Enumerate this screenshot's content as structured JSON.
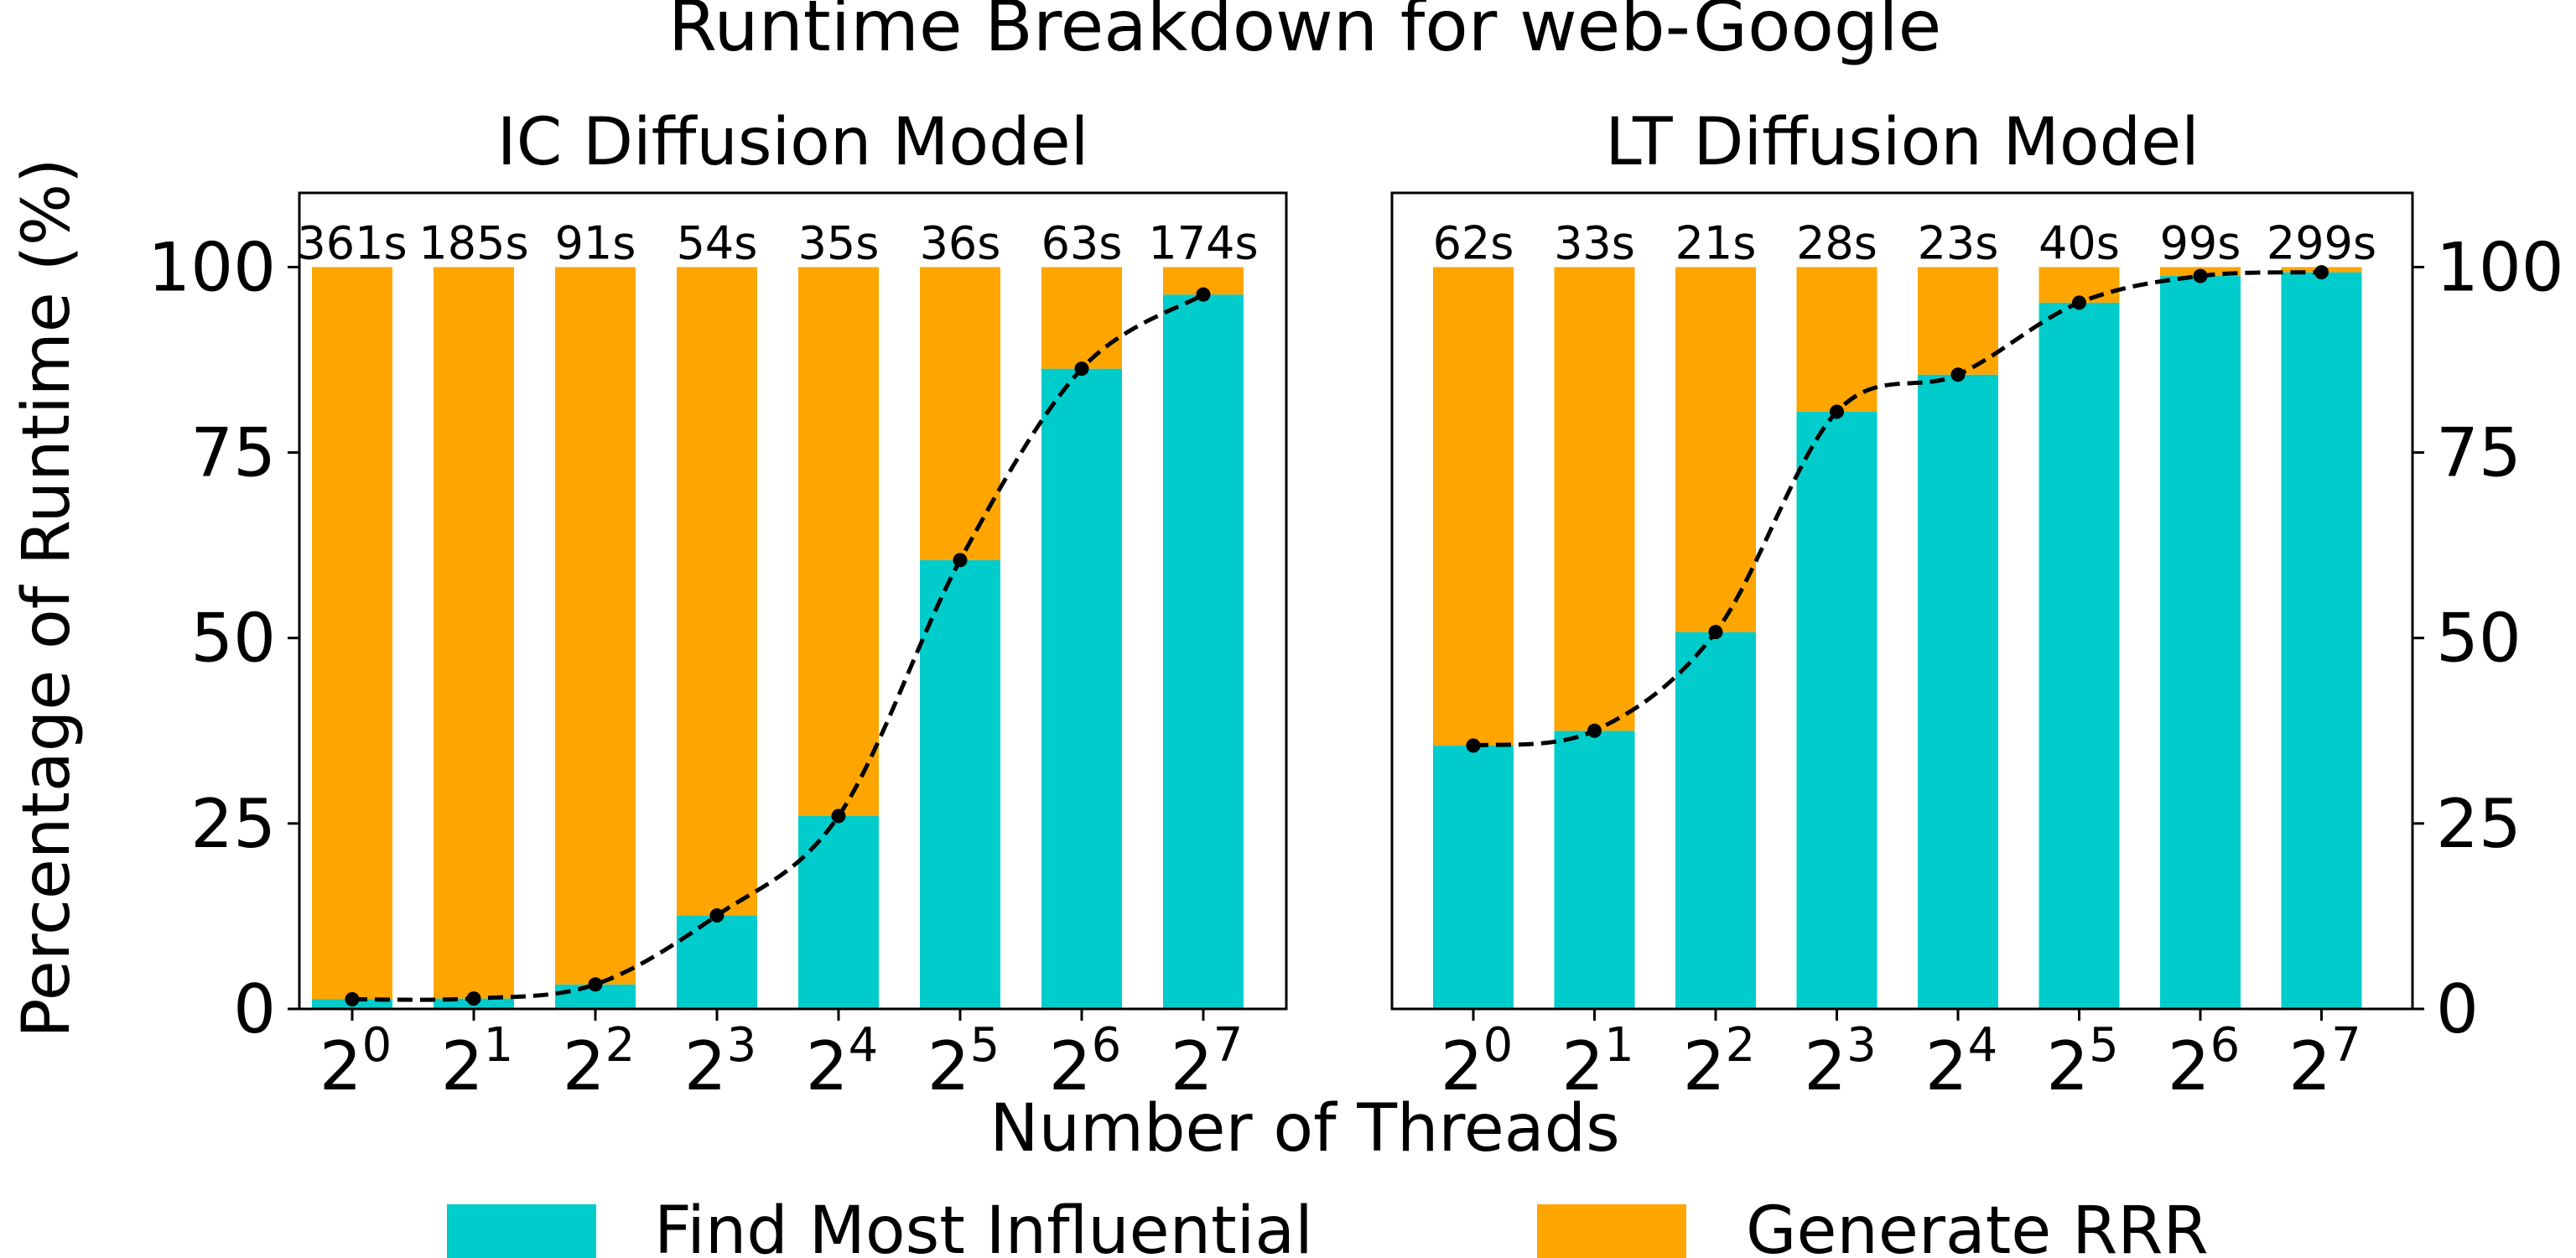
{
  "figure": {
    "title": "Runtime Breakdown for web-Google",
    "xlabel": "Number of Threads",
    "ylabel": "Percentage of Runtime (%)",
    "colors": {
      "find": "#00CCCC",
      "generate": "#FFA500",
      "curve": "#000000"
    },
    "legend": [
      {
        "label": "Find Most Influential",
        "color": "#00CCCC"
      },
      {
        "label": "Generate RRR",
        "color": "#FFA500"
      }
    ]
  },
  "chart_data": [
    {
      "type": "bar",
      "stacked": true,
      "title": "IC Diffusion Model",
      "categories": [
        "2^0",
        "2^1",
        "2^2",
        "2^3",
        "2^4",
        "2^5",
        "2^6",
        "2^7"
      ],
      "x_exponents": [
        "0",
        "1",
        "2",
        "3",
        "4",
        "5",
        "6",
        "7"
      ],
      "x_base": "2",
      "series": [
        {
          "name": "Find Most Influential",
          "values": [
            1.3,
            1.4,
            3.3,
            12.6,
            26.0,
            60.5,
            86.3,
            96.3
          ]
        },
        {
          "name": "Generate RRR",
          "values": [
            98.7,
            98.6,
            96.7,
            87.4,
            74.0,
            39.5,
            13.7,
            3.7
          ]
        }
      ],
      "bar_labels": [
        "361s",
        "185s",
        "91s",
        "54s",
        "35s",
        "36s",
        "63s",
        "174s"
      ],
      "ylim": [
        0,
        110
      ],
      "yticks": [
        0,
        25,
        50,
        75,
        100
      ],
      "y_axis_side": "left",
      "trend_line": "dashed smooth curve through Find Most Influential values"
    },
    {
      "type": "bar",
      "stacked": true,
      "title": "LT Diffusion Model",
      "categories": [
        "2^0",
        "2^1",
        "2^2",
        "2^3",
        "2^4",
        "2^5",
        "2^6",
        "2^7"
      ],
      "x_exponents": [
        "0",
        "1",
        "2",
        "3",
        "4",
        "5",
        "6",
        "7"
      ],
      "x_base": "2",
      "series": [
        {
          "name": "Find Most Influential",
          "values": [
            35.5,
            37.5,
            50.8,
            80.5,
            85.5,
            95.2,
            98.8,
            99.3
          ]
        },
        {
          "name": "Generate RRR",
          "values": [
            64.5,
            62.5,
            49.2,
            19.5,
            14.5,
            4.8,
            1.2,
            0.7
          ]
        }
      ],
      "bar_labels": [
        "62s",
        "33s",
        "21s",
        "28s",
        "23s",
        "40s",
        "99s",
        "299s"
      ],
      "ylim": [
        0,
        110
      ],
      "yticks": [
        0,
        25,
        50,
        75,
        100
      ],
      "y_axis_side": "right",
      "trend_line": "dashed smooth curve through Find Most Influential values"
    }
  ]
}
